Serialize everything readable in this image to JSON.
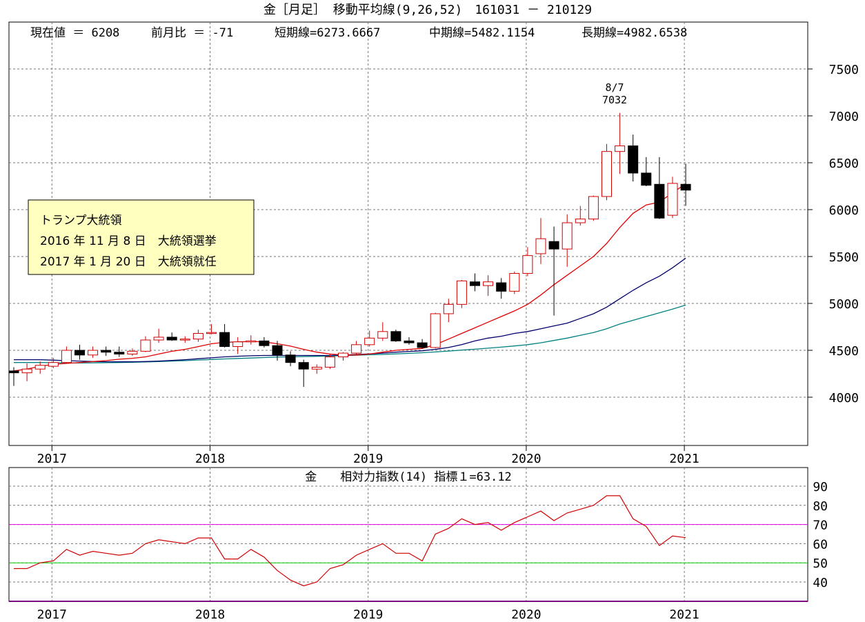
{
  "chart_data": [
    {
      "type": "candlestick",
      "title": "金［月足］ 移動平均線(9,26,52)　161031 － 210129",
      "info": {
        "current_label": "現在値 ＝ 6208",
        "change_label": "前月比 ＝ -71",
        "short_label": "短期線=6273.6667",
        "mid_label": "中期線=5482.1154",
        "long_label": "長期線=4982.6538"
      },
      "ylim": [
        3500,
        7800
      ],
      "yticks": [
        4000,
        4500,
        5000,
        5500,
        6000,
        6500,
        7000,
        7500
      ],
      "year_labels": [
        "2017",
        "2018",
        "2019",
        "2020",
        "2021"
      ],
      "peak_annotation": {
        "date": "8/7",
        "value": "7032"
      },
      "note_box": {
        "line1": "トランプ大統領",
        "line2": "2016 年 11 月 8 日　大統領選挙",
        "line3": "2017 年 1 月 20 日　大統領就任"
      },
      "months": [
        "2016-10",
        "2016-11",
        "2016-12",
        "2017-01",
        "2017-02",
        "2017-03",
        "2017-04",
        "2017-05",
        "2017-06",
        "2017-07",
        "2017-08",
        "2017-09",
        "2017-10",
        "2017-11",
        "2017-12",
        "2018-01",
        "2018-02",
        "2018-03",
        "2018-04",
        "2018-05",
        "2018-06",
        "2018-07",
        "2018-08",
        "2018-09",
        "2018-10",
        "2018-11",
        "2018-12",
        "2019-01",
        "2019-02",
        "2019-03",
        "2019-04",
        "2019-05",
        "2019-06",
        "2019-07",
        "2019-08",
        "2019-09",
        "2019-10",
        "2019-11",
        "2019-12",
        "2020-01",
        "2020-02",
        "2020-03",
        "2020-04",
        "2020-05",
        "2020-06",
        "2020-07",
        "2020-08",
        "2020-09",
        "2020-10",
        "2020-11",
        "2020-12",
        "2021-01"
      ],
      "ohlc": [
        [
          4280,
          4320,
          4120,
          4260
        ],
        [
          4260,
          4360,
          4170,
          4300
        ],
        [
          4300,
          4380,
          4250,
          4340
        ],
        [
          4330,
          4420,
          4310,
          4370
        ],
        [
          4370,
          4540,
          4360,
          4500
        ],
        [
          4500,
          4560,
          4400,
          4450
        ],
        [
          4450,
          4540,
          4420,
          4500
        ],
        [
          4500,
          4540,
          4440,
          4480
        ],
        [
          4480,
          4540,
          4430,
          4460
        ],
        [
          4460,
          4520,
          4440,
          4490
        ],
        [
          4490,
          4650,
          4480,
          4610
        ],
        [
          4610,
          4730,
          4580,
          4640
        ],
        [
          4640,
          4690,
          4600,
          4610
        ],
        [
          4610,
          4650,
          4580,
          4620
        ],
        [
          4620,
          4720,
          4590,
          4680
        ],
        [
          4680,
          4780,
          4670,
          4690
        ],
        [
          4690,
          4780,
          4530,
          4540
        ],
        [
          4540,
          4640,
          4460,
          4590
        ],
        [
          4590,
          4660,
          4560,
          4600
        ],
        [
          4600,
          4640,
          4530,
          4550
        ],
        [
          4550,
          4600,
          4390,
          4450
        ],
        [
          4450,
          4490,
          4330,
          4370
        ],
        [
          4370,
          4400,
          4110,
          4300
        ],
        [
          4300,
          4350,
          4250,
          4320
        ],
        [
          4320,
          4460,
          4300,
          4430
        ],
        [
          4430,
          4480,
          4390,
          4470
        ],
        [
          4470,
          4600,
          4450,
          4560
        ],
        [
          4560,
          4710,
          4540,
          4630
        ],
        [
          4630,
          4800,
          4600,
          4700
        ],
        [
          4700,
          4720,
          4590,
          4600
        ],
        [
          4600,
          4640,
          4560,
          4580
        ],
        [
          4580,
          4620,
          4520,
          4530
        ],
        [
          4530,
          4900,
          4520,
          4890
        ],
        [
          4890,
          5050,
          4800,
          4990
        ],
        [
          4990,
          5250,
          4950,
          5240
        ],
        [
          5230,
          5320,
          5130,
          5190
        ],
        [
          5190,
          5300,
          5080,
          5230
        ],
        [
          5220,
          5270,
          5050,
          5130
        ],
        [
          5130,
          5340,
          5100,
          5320
        ],
        [
          5320,
          5600,
          5290,
          5510
        ],
        [
          5530,
          5910,
          5420,
          5690
        ],
        [
          5660,
          5820,
          4870,
          5580
        ],
        [
          5580,
          5950,
          5390,
          5860
        ],
        [
          5860,
          6040,
          5830,
          5900
        ],
        [
          5900,
          6150,
          5880,
          6140
        ],
        [
          6140,
          6700,
          6100,
          6620
        ],
        [
          6620,
          7032,
          6380,
          6680
        ],
        [
          6680,
          6800,
          6300,
          6390
        ],
        [
          6390,
          6560,
          6250,
          6260
        ],
        [
          6270,
          6560,
          5900,
          5910
        ],
        [
          5940,
          6350,
          5910,
          6280
        ],
        [
          6270,
          6490,
          6040,
          6208
        ]
      ],
      "sma_short": [
        4280,
        4300,
        4330,
        4350,
        4360,
        4370,
        4380,
        4390,
        4405,
        4415,
        4430,
        4460,
        4490,
        4510,
        4540,
        4570,
        4585,
        4590,
        4595,
        4590,
        4570,
        4545,
        4510,
        4480,
        4460,
        4450,
        4450,
        4460,
        4480,
        4500,
        4510,
        4520,
        4560,
        4620,
        4680,
        4740,
        4800,
        4860,
        4920,
        4990,
        5090,
        5200,
        5300,
        5400,
        5500,
        5640,
        5810,
        5960,
        6050,
        6080,
        6180,
        6274
      ],
      "sma_mid": [
        4400,
        4400,
        4400,
        4395,
        4390,
        4385,
        4380,
        4378,
        4377,
        4378,
        4380,
        4385,
        4392,
        4400,
        4410,
        4420,
        4430,
        4437,
        4442,
        4445,
        4445,
        4445,
        4445,
        4445,
        4445,
        4450,
        4455,
        4462,
        4470,
        4480,
        4488,
        4495,
        4510,
        4530,
        4560,
        4600,
        4630,
        4650,
        4680,
        4700,
        4730,
        4760,
        4790,
        4840,
        4890,
        4960,
        5050,
        5140,
        5220,
        5290,
        5380,
        5482
      ],
      "sma_long": [
        4370,
        4370,
        4370,
        4368,
        4366,
        4365,
        4366,
        4368,
        4370,
        4373,
        4376,
        4380,
        4385,
        4390,
        4396,
        4402,
        4408,
        4413,
        4418,
        4423,
        4427,
        4430,
        4433,
        4436,
        4440,
        4444,
        4448,
        4452,
        4456,
        4462,
        4468,
        4474,
        4482,
        4492,
        4502,
        4512,
        4523,
        4534,
        4546,
        4560,
        4580,
        4605,
        4630,
        4660,
        4690,
        4730,
        4780,
        4820,
        4860,
        4900,
        4940,
        4982
      ]
    },
    {
      "type": "line",
      "title": "金　　相対力指数(14) 指標１=63.12",
      "ylim": [
        30,
        95
      ],
      "yticks": [
        40,
        50,
        60,
        70,
        80,
        90
      ],
      "reference_lines": [
        70,
        50
      ],
      "year_labels": [
        "2017",
        "2018",
        "2019",
        "2020",
        "2021"
      ],
      "rsi": [
        47,
        47,
        50,
        51,
        57,
        54,
        56,
        55,
        54,
        55,
        60,
        62,
        61,
        60,
        63,
        63,
        52,
        52,
        57,
        53,
        46,
        41,
        38,
        40,
        47,
        49,
        54,
        57,
        60,
        55,
        55,
        51,
        65,
        68,
        73,
        70,
        71,
        67,
        71,
        74,
        77,
        72,
        76,
        78,
        80,
        85,
        85,
        73,
        69,
        59,
        64,
        63.12
      ]
    }
  ],
  "colors": {
    "bull_candle": "#d00000",
    "bear_candle": "#000000",
    "short_ma": "#e00000",
    "mid_ma": "#00006b",
    "long_ma": "#008080",
    "rsi_line": "#d00000",
    "rsi_upper_ref": "#e000e0",
    "rsi_lower_ref": "#00d000",
    "note_box_bg": "#ffffc0",
    "grid": "#777777"
  }
}
